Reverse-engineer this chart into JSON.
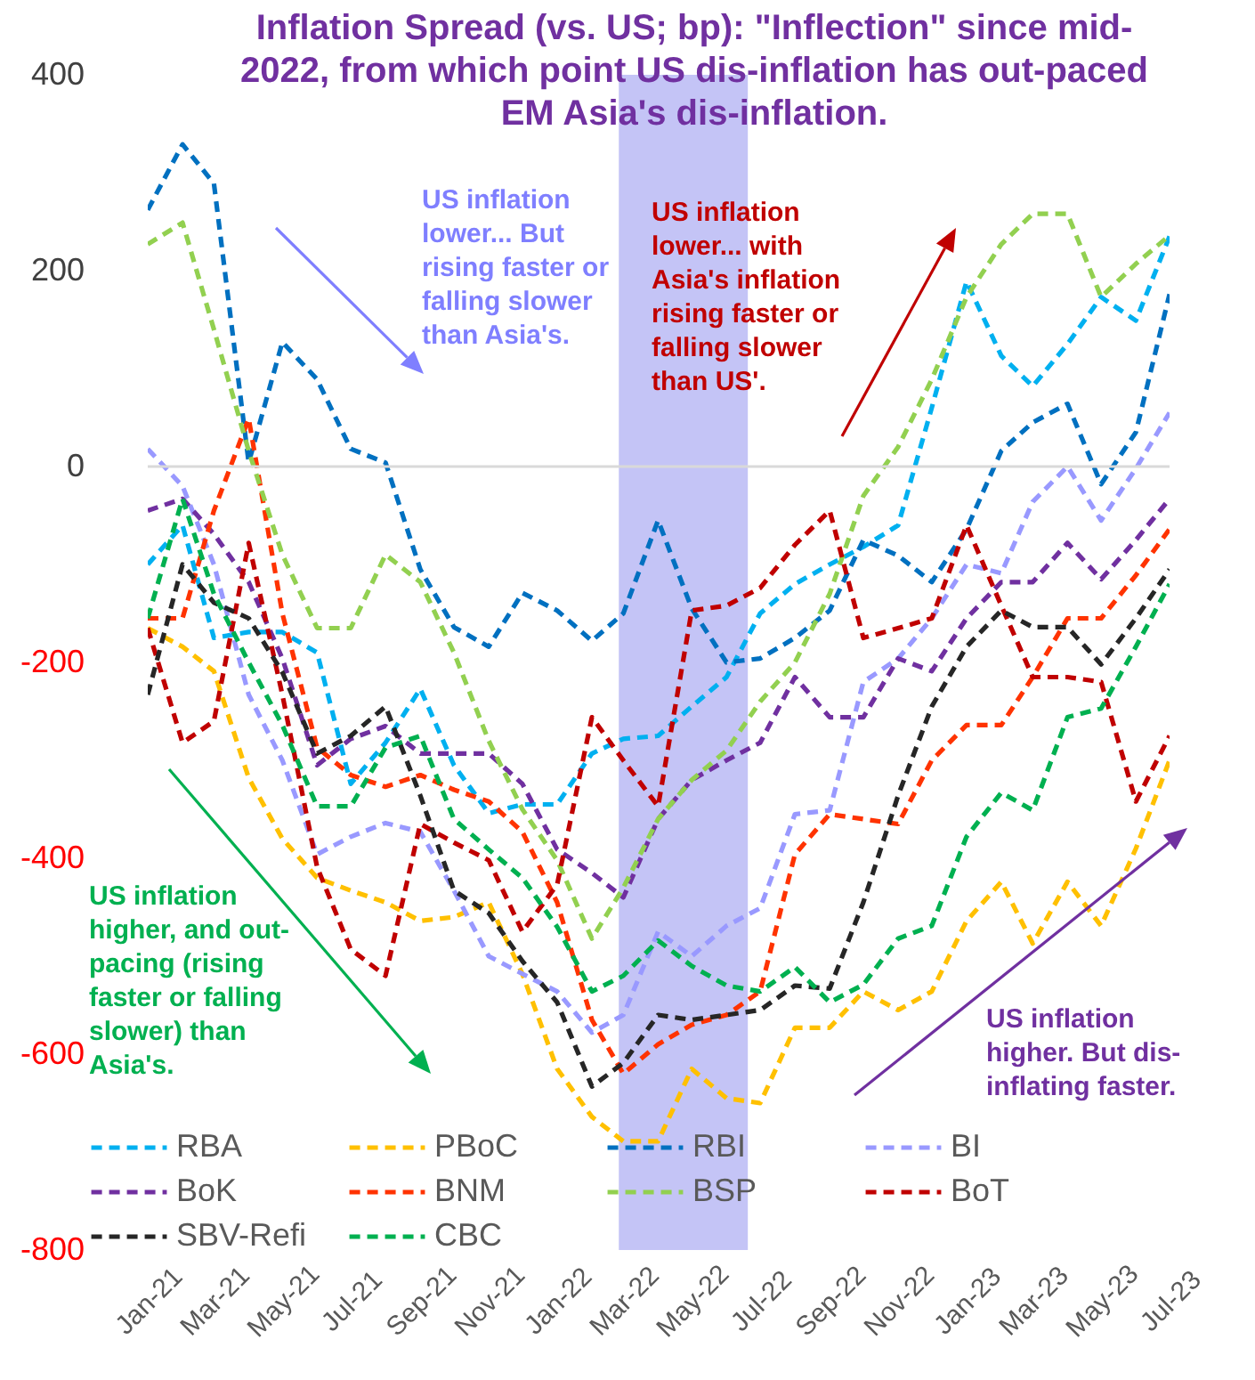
{
  "chart_data": {
    "type": "line",
    "title": "Inflation Spread (vs. US; bp): \"Inflection\" since mid-2022, from which point US dis-inflation has out-paced EM Asia's dis-inflation.",
    "x": [
      "2021-01",
      "2021-02",
      "2021-03",
      "2021-04",
      "2021-05",
      "2021-06",
      "2021-07",
      "2021-08",
      "2021-09",
      "2021-10",
      "2021-11",
      "2021-12",
      "2022-01",
      "2022-02",
      "2022-03",
      "2022-04",
      "2022-05",
      "2022-06",
      "2022-07",
      "2022-08",
      "2022-09",
      "2022-10",
      "2022-11",
      "2022-12",
      "2023-01",
      "2023-02",
      "2023-03",
      "2023-04",
      "2023-05",
      "2023-06",
      "2023-07"
    ],
    "series": [
      {
        "name": "RBA",
        "color": "#00b0f0",
        "values": [
          -100,
          -60,
          -175,
          -169,
          -169,
          -190,
          -324,
          -282,
          -227,
          -305,
          -354,
          -345,
          -345,
          -293,
          -278,
          -275,
          -245,
          -215,
          -150,
          -120,
          -100,
          -82,
          -60,
          60,
          189,
          113,
          82,
          125,
          173,
          149,
          235
        ]
      },
      {
        "name": "PBoC",
        "color": "#ffc000",
        "values": [
          -165,
          -184,
          -209,
          -318,
          -380,
          -420,
          -433,
          -445,
          -464,
          -460,
          -445,
          -518,
          -615,
          -664,
          -689,
          -689,
          -615,
          -645,
          -650,
          -573,
          -573,
          -536,
          -555,
          -536,
          -464,
          -424,
          -487,
          -424,
          -469,
          -390,
          -300
        ]
      },
      {
        "name": "RBI",
        "color": "#0070c0",
        "values": [
          262,
          329,
          289,
          4,
          127,
          89,
          18,
          4,
          -105,
          -164,
          -184,
          -129,
          -147,
          -178,
          -150,
          -55,
          -145,
          -200,
          -196,
          -175,
          -147,
          -75,
          -91,
          -118,
          -64,
          16,
          45,
          64,
          -18,
          35,
          176
        ]
      },
      {
        "name": "BI",
        "color": "#9999ff",
        "values": [
          18,
          -20,
          -100,
          -233,
          -300,
          -396,
          -378,
          -364,
          -373,
          -433,
          -500,
          -518,
          -536,
          -578,
          -560,
          -475,
          -500,
          -469,
          -451,
          -355,
          -351,
          -220,
          -196,
          -155,
          -100,
          -109,
          -36,
          0,
          -55,
          -2,
          55
        ]
      },
      {
        "name": "BoK",
        "color": "#7030a0",
        "values": [
          -45,
          -33,
          -69,
          -118,
          -196,
          -305,
          -278,
          -265,
          -293,
          -293,
          -293,
          -324,
          -391,
          -415,
          -440,
          -360,
          -320,
          -300,
          -282,
          -215,
          -256,
          -256,
          -196,
          -209,
          -155,
          -118,
          -118,
          -78,
          -115,
          -75,
          -33
        ]
      },
      {
        "name": "BNM",
        "color": "#ff3300",
        "values": [
          -155,
          -155,
          -45,
          49,
          -150,
          -287,
          -315,
          -327,
          -315,
          -330,
          -342,
          -373,
          -445,
          -565,
          -620,
          -590,
          -570,
          -560,
          -536,
          -396,
          -355,
          -360,
          -365,
          -300,
          -264,
          -264,
          -215,
          -155,
          -155,
          -111,
          -64
        ]
      },
      {
        "name": "BSP",
        "color": "#92d050",
        "values": [
          227,
          249,
          140,
          16,
          -90,
          -165,
          -165,
          -90,
          -118,
          -190,
          -280,
          -350,
          -402,
          -482,
          -430,
          -360,
          -320,
          -290,
          -240,
          -200,
          -130,
          -30,
          20,
          89,
          173,
          227,
          258,
          258,
          173,
          207,
          236
        ]
      },
      {
        "name": "BoT",
        "color": "#c00000",
        "values": [
          -165,
          -282,
          -260,
          -78,
          -233,
          -409,
          -493,
          -520,
          -365,
          -384,
          -402,
          -475,
          -427,
          -256,
          -300,
          -347,
          -147,
          -142,
          -124,
          -80,
          -45,
          -175,
          -165,
          -155,
          -60,
          -142,
          -215,
          -215,
          -220,
          -342,
          -275
        ]
      },
      {
        "name": "SBV-Refi",
        "color": "#262626",
        "values": [
          -233,
          -100,
          -139,
          -155,
          -210,
          -293,
          -275,
          -245,
          -336,
          -433,
          -456,
          -505,
          -547,
          -633,
          -609,
          -560,
          -565,
          -560,
          -555,
          -530,
          -533,
          -445,
          -336,
          -245,
          -184,
          -147,
          -164,
          -164,
          -202,
          -155,
          -105
        ]
      },
      {
        "name": "CBC",
        "color": "#00b050",
        "values": [
          -155,
          -33,
          -130,
          -200,
          -264,
          -347,
          -347,
          -287,
          -275,
          -360,
          -391,
          -420,
          -470,
          -536,
          -520,
          -484,
          -510,
          -530,
          -536,
          -511,
          -547,
          -529,
          -482,
          -469,
          -378,
          -333,
          -351,
          -256,
          -247,
          -184,
          -120
        ]
      }
    ],
    "xlim": [
      "2021-01",
      "2023-07"
    ],
    "xticks": [
      {
        "value": "2021-01",
        "label": "Jan-21"
      },
      {
        "value": "2021-03",
        "label": "Mar-21"
      },
      {
        "value": "2021-05",
        "label": "May-21"
      },
      {
        "value": "2021-07",
        "label": "Jul-21"
      },
      {
        "value": "2021-09",
        "label": "Sep-21"
      },
      {
        "value": "2021-11",
        "label": "Nov-21"
      },
      {
        "value": "2022-01",
        "label": "Jan-22"
      },
      {
        "value": "2022-03",
        "label": "Mar-22"
      },
      {
        "value": "2022-05",
        "label": "May-22"
      },
      {
        "value": "2022-07",
        "label": "Jul-22"
      },
      {
        "value": "2022-09",
        "label": "Sep-22"
      },
      {
        "value": "2022-11",
        "label": "Nov-22"
      },
      {
        "value": "2023-01",
        "label": "Jan-23"
      },
      {
        "value": "2023-03",
        "label": "Mar-23"
      },
      {
        "value": "2023-05",
        "label": "May-23"
      },
      {
        "value": "2023-07",
        "label": "Jul-23"
      }
    ],
    "ylim": [
      -800,
      400
    ],
    "yticks": [
      -800,
      -600,
      -400,
      -200,
      0,
      200,
      400
    ],
    "ref_lines": [
      {
        "axis": "y",
        "value": 0,
        "color": "#d9d9d9"
      }
    ],
    "bands": [
      {
        "axis": "x",
        "from": "2022-02-25",
        "to": "2022-06-20",
        "color": "#c4c4f6"
      }
    ],
    "annotations": [
      "US inflation lower... But rising faster or falling slower than Asia's.",
      "US inflation lower... with Asia's inflation rising faster or falling slower than US'.",
      "US inflation higher, and out-pacing (rising faster or falling slower) than Asia's.",
      "US inflation higher. But dis-inflating faster."
    ],
    "legend": "bottom",
    "line_style": "dashed",
    "marker": "none",
    "grid": false
  }
}
